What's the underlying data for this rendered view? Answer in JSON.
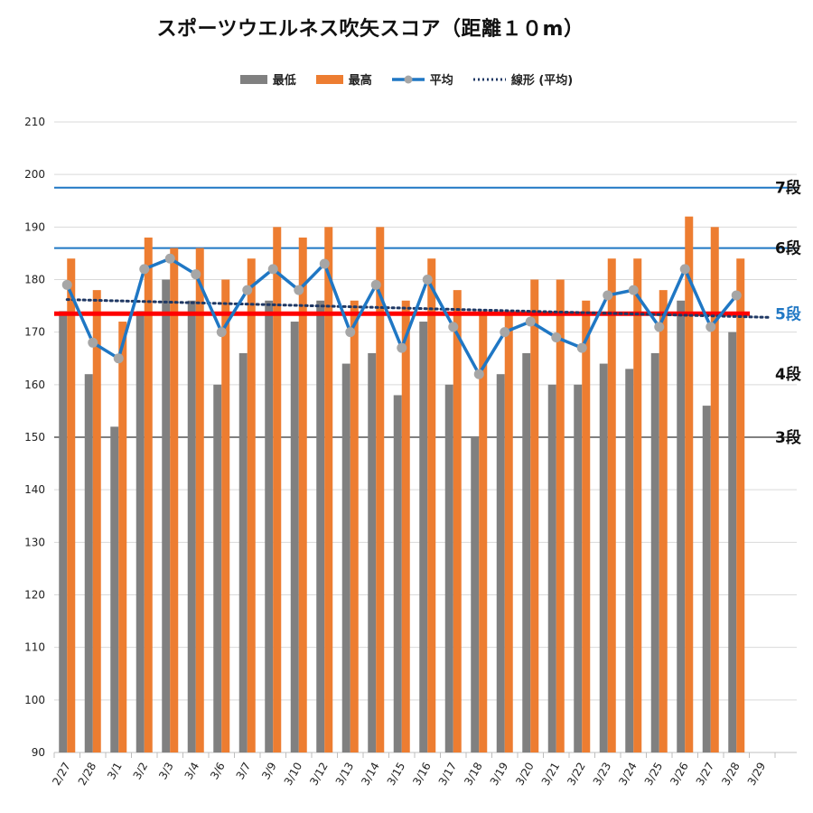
{
  "chart_data": {
    "type": "bar",
    "title": "スポーツウエルネス吹矢スコア（距離１０m）",
    "categories": [
      "2/27",
      "2/28",
      "3/1",
      "3/2",
      "3/3",
      "3/4",
      "3/6",
      "3/7",
      "3/9",
      "3/10",
      "3/12",
      "3/13",
      "3/14",
      "3/15",
      "3/16",
      "3/17",
      "3/18",
      "3/19",
      "3/20",
      "3/21",
      "3/22",
      "3/23",
      "3/24",
      "3/25",
      "3/26",
      "3/27",
      "3/28",
      "3/29"
    ],
    "series": [
      {
        "name": "最低",
        "type": "bar",
        "color": "#808080",
        "values": [
          174,
          162,
          152,
          174,
          180,
          176,
          160,
          166,
          176,
          172,
          176,
          164,
          166,
          158,
          172,
          160,
          150,
          162,
          166,
          160,
          160,
          164,
          163,
          166,
          176,
          156,
          170,
          null
        ]
      },
      {
        "name": "最高",
        "type": "bar",
        "color": "#ED7D31",
        "values": [
          184,
          178,
          172,
          188,
          186,
          186,
          180,
          184,
          190,
          188,
          190,
          176,
          190,
          176,
          184,
          178,
          174,
          174,
          180,
          180,
          176,
          184,
          184,
          178,
          192,
          190,
          184,
          null
        ]
      },
      {
        "name": "平均",
        "type": "line",
        "color": "#1F77C4",
        "marker_color": "#A6A6A6",
        "values": [
          179,
          168,
          165,
          182,
          184,
          181,
          170,
          178,
          182,
          178,
          183,
          170,
          179,
          167,
          180,
          171,
          162,
          170,
          172,
          169,
          167,
          177,
          178,
          171,
          182,
          171,
          177,
          null
        ]
      },
      {
        "name": "線形 (平均)",
        "type": "trendline",
        "color": "#1F3864",
        "start": 176.2,
        "end": 172.8
      }
    ],
    "ylim": [
      90,
      210
    ],
    "yticks": [
      90,
      100,
      110,
      120,
      130,
      140,
      150,
      160,
      170,
      180,
      190,
      200,
      210
    ],
    "grid": true,
    "legend": "top",
    "reference_lines": [
      {
        "label": "7段",
        "value": 197.5,
        "color": "#1F77C4",
        "label_color": "#111111"
      },
      {
        "label": "6段",
        "value": 186,
        "color": "#1F77C4",
        "label_color": "#111111"
      },
      {
        "label": "5段",
        "value": 173.5,
        "color": "#FF0000",
        "label_color": "#1F77C4"
      },
      {
        "label": "4段",
        "value": 162,
        "color": "none",
        "label_color": "#111111"
      },
      {
        "label": "3段",
        "value": 150,
        "color": "#808080",
        "label_color": "#111111"
      }
    ]
  }
}
